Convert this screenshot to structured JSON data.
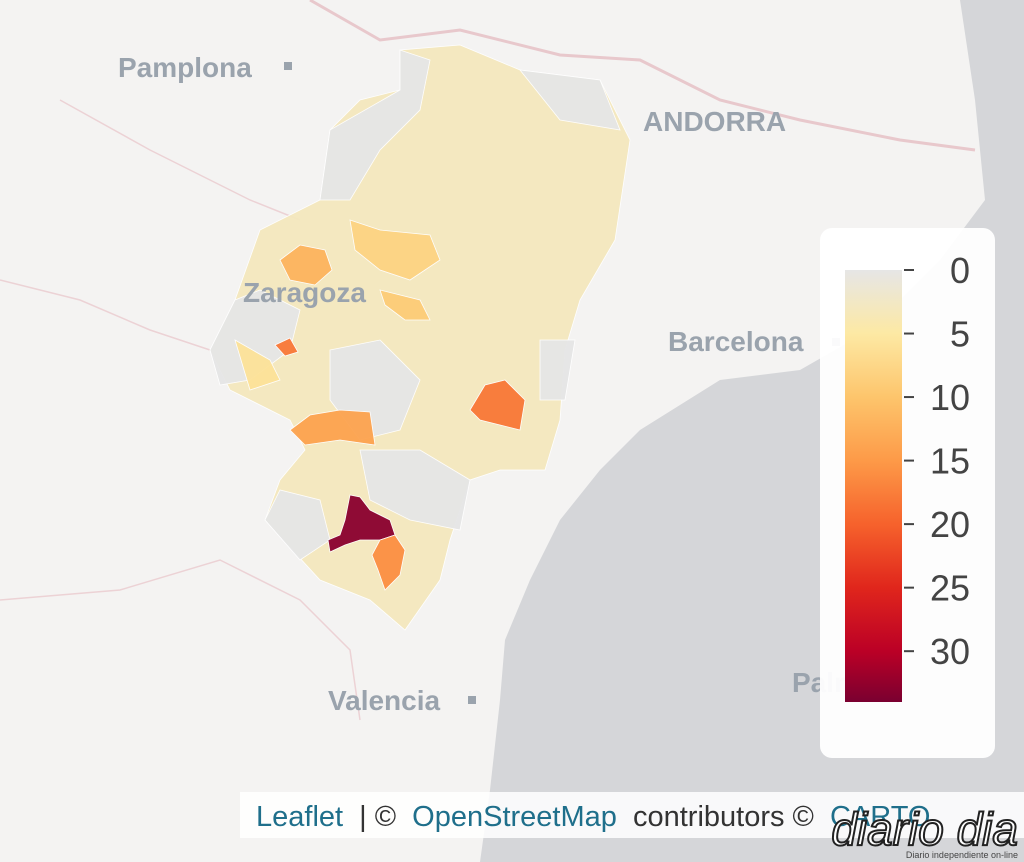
{
  "map": {
    "places": [
      "Pamplona",
      "ANDORRA",
      "Zaragoza",
      "Barcelona",
      "Valencia",
      "Palma"
    ],
    "legend": {
      "range": [
        0,
        34
      ],
      "ticks": [
        0,
        5,
        10,
        15,
        20,
        25,
        30
      ],
      "stops": [
        {
          "value": 0,
          "color": "#e6e6e6"
        },
        {
          "value": 5,
          "color": "#fde9a4"
        },
        {
          "value": 10,
          "color": "#fdc56c"
        },
        {
          "value": 15,
          "color": "#fd9a48"
        },
        {
          "value": 20,
          "color": "#f6622c"
        },
        {
          "value": 25,
          "color": "#e0261c"
        },
        {
          "value": 30,
          "color": "#bb0026"
        },
        {
          "value": 34,
          "color": "#7a0030"
        }
      ]
    },
    "regions": [
      3,
      0,
      0,
      0,
      0,
      0,
      0,
      0,
      18,
      14,
      12,
      18,
      33,
      16,
      8,
      9,
      6
    ],
    "attribution": {
      "leaflet": "Leaflet",
      "sep": "| ©",
      "osm": "OpenStreetMap",
      "contrib": "contributors ©",
      "carto": "CARTO"
    },
    "watermark": {
      "name": "diario dia",
      "tagline": "Diario independiente on-line"
    }
  }
}
